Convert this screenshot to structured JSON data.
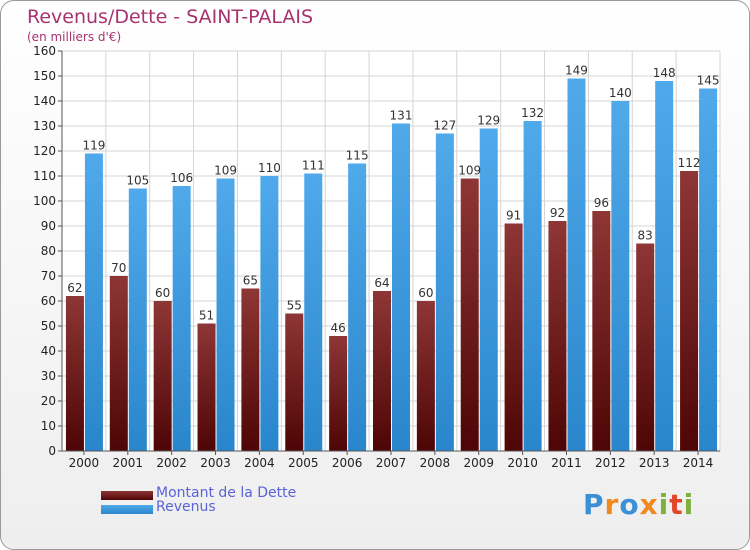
{
  "chart_data": {
    "type": "bar",
    "title": "Revenus/Dette - SAINT-PALAIS",
    "subtitle": "(en milliers d'€)",
    "categories": [
      "2000",
      "2001",
      "2002",
      "2003",
      "2004",
      "2005",
      "2006",
      "2007",
      "2008",
      "2009",
      "2010",
      "2011",
      "2012",
      "2013",
      "2014"
    ],
    "series": [
      {
        "name": "Montant de la Dette",
        "values": [
          62,
          70,
          60,
          51,
          65,
          55,
          46,
          64,
          60,
          109,
          91,
          92,
          96,
          83,
          112
        ],
        "color": "#7a1c1c"
      },
      {
        "name": "Revenus",
        "values": [
          119,
          105,
          106,
          109,
          110,
          111,
          115,
          131,
          127,
          129,
          132,
          149,
          140,
          148,
          145
        ],
        "color": "#3e9ee0"
      }
    ],
    "ylim": [
      0,
      160
    ],
    "yticks": [
      0,
      10,
      20,
      30,
      40,
      50,
      60,
      70,
      80,
      90,
      100,
      110,
      120,
      130,
      140,
      150,
      160
    ],
    "grid": true,
    "legend_position": "bottom-left"
  },
  "logo": {
    "letters": [
      {
        "ch": "P",
        "color": "#3b8fd6"
      },
      {
        "ch": "r",
        "color": "#f08a1e"
      },
      {
        "ch": "o",
        "color": "#3b8fd6"
      },
      {
        "ch": "x",
        "color": "#f08a1e"
      },
      {
        "ch": "i",
        "color": "#7cb13c"
      },
      {
        "ch": "t",
        "color": "#e2452a"
      },
      {
        "ch": "i",
        "color": "#7cb13c"
      }
    ]
  }
}
